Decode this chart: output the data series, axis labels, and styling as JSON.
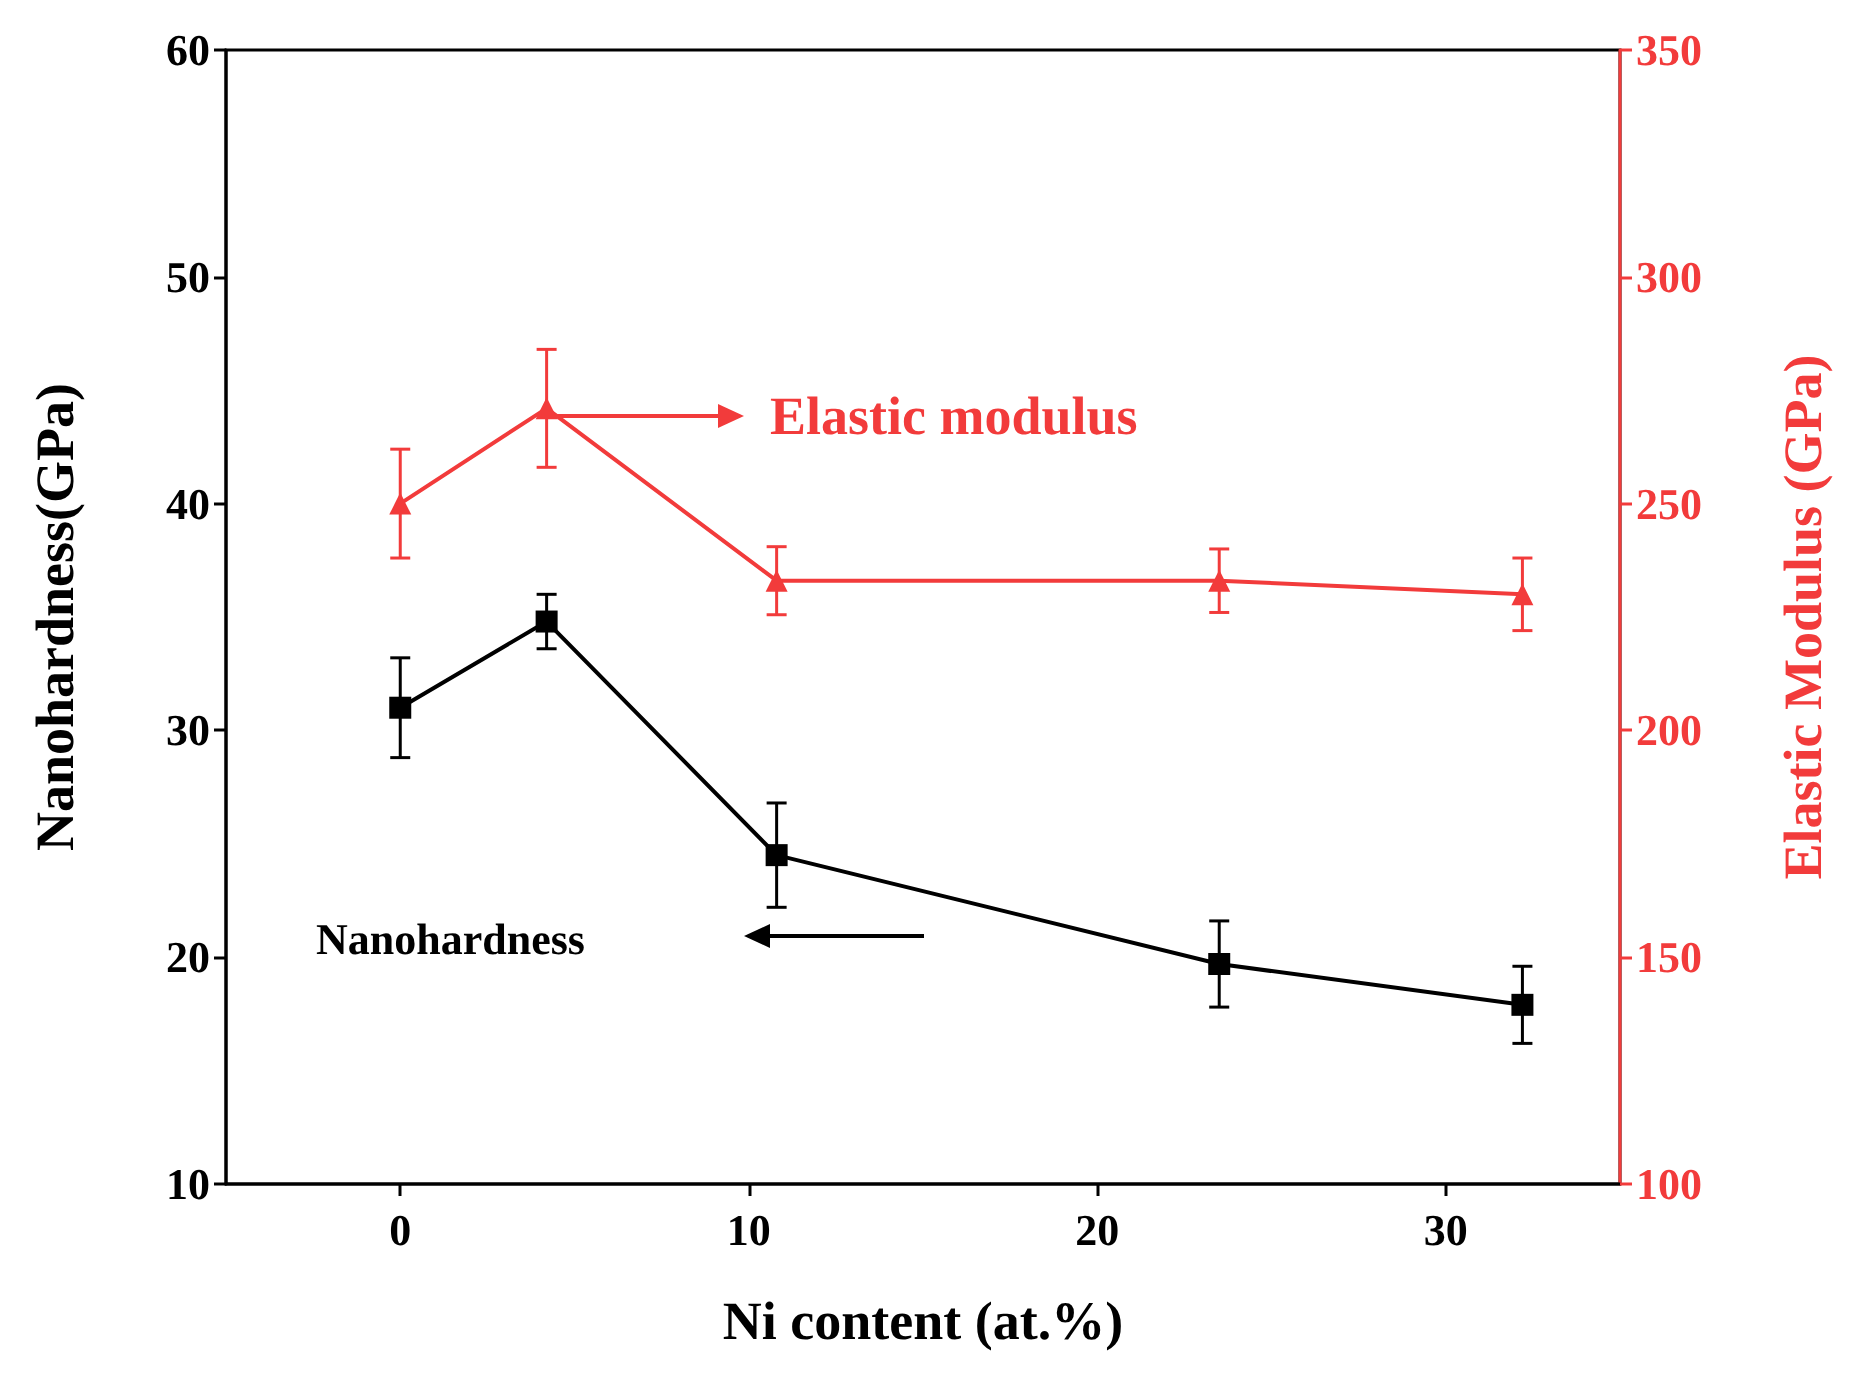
{
  "chart_data": {
    "type": "line",
    "xlabel": "Ni content (at.%)",
    "ylabel": "Nanohardness(GPa)",
    "y2label": "Elastic Modulus (GPa)",
    "xlim": [
      -5,
      35
    ],
    "xticks": [
      0,
      10,
      20,
      30
    ],
    "ylim": [
      10,
      60
    ],
    "yticks": [
      10,
      20,
      30,
      40,
      50,
      60
    ],
    "y2lim": [
      100,
      350
    ],
    "y2ticks": [
      100,
      150,
      200,
      250,
      300,
      350
    ],
    "grid": false,
    "line_style": "solid",
    "annotations": [
      "Elastic modulus",
      "Nanohardness"
    ],
    "series": [
      {
        "color": "#000000",
        "marker": "square",
        "x": [
          0,
          4.2,
          10.8,
          23.5,
          32.2
        ],
        "values": [
          31,
          34.8,
          24.5,
          19.7,
          17.9
        ],
        "errors": [
          2.2,
          1.2,
          2.3,
          1.9,
          1.7
        ]
      },
      {
        "axis": "y2",
        "color": "#f23b3b",
        "marker": "triangle",
        "x": [
          0,
          4.2,
          10.8,
          23.5,
          32.2
        ],
        "values": [
          250,
          271,
          233,
          233,
          230
        ],
        "errors": [
          12,
          13,
          7.5,
          7,
          8
        ]
      }
    ]
  }
}
